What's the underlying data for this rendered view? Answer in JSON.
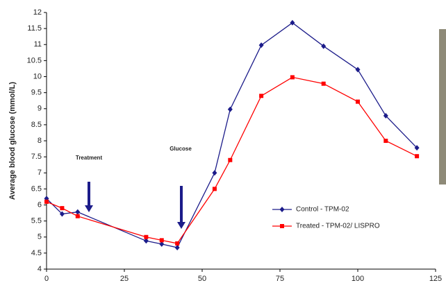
{
  "chart_data": {
    "type": "line",
    "y_label": "Average blood glucose (mmol/L)",
    "annotations": [
      "Treatment",
      "Glucose"
    ],
    "xlim": [
      0,
      125
    ],
    "xticks": [
      0,
      25,
      50,
      75,
      100,
      125
    ],
    "ylim": [
      4,
      12
    ],
    "yticks": [
      4,
      4.5,
      5,
      5.5,
      6,
      6.5,
      7,
      7.5,
      8,
      8.5,
      9,
      9.5,
      10,
      10.5,
      11,
      11.5,
      12
    ],
    "grid": false,
    "legend": "lower right",
    "series": [
      {
        "name": "Control - TPM-02",
        "color": "#1c1c8a",
        "marker": "diamond",
        "x": [
          0,
          5,
          10,
          32,
          37,
          42,
          54,
          59,
          69,
          79,
          89,
          100,
          109,
          119
        ],
        "values": [
          6.2,
          5.72,
          5.78,
          4.88,
          4.78,
          4.67,
          7.0,
          8.98,
          10.98,
          11.68,
          10.95,
          10.22,
          8.78,
          7.78
        ]
      },
      {
        "name": "Treated - TPM-02/ LISPRO",
        "color": "#ff0000",
        "marker": "square",
        "x": [
          0,
          5,
          10,
          32,
          37,
          42,
          54,
          59,
          69,
          79,
          89,
          100,
          109,
          119
        ],
        "values": [
          6.1,
          5.9,
          5.65,
          5.0,
          4.9,
          4.8,
          6.5,
          7.4,
          9.4,
          9.98,
          9.78,
          9.22,
          8.0,
          7.52
        ]
      }
    ]
  }
}
